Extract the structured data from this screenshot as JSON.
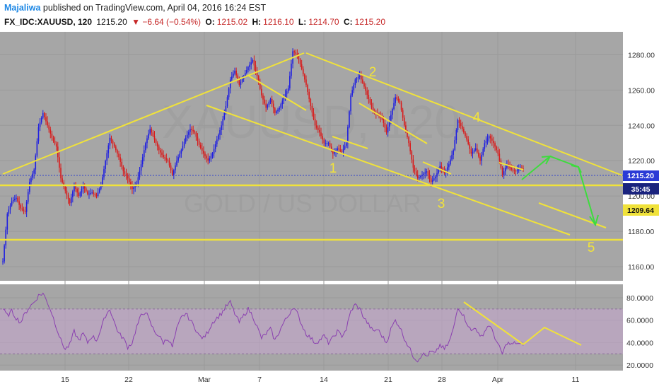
{
  "header": {
    "author": "Majaliwa",
    "published_text": "published on TradingView.com, April 04, 2016 16:24 EST",
    "symbol_interval": "FX_IDC:XAUUSD, 120",
    "price": "1215.20",
    "change": "▼ −6.64 (−0.54%)",
    "o_label": "O:",
    "o_value": "1215.02",
    "h_label": "H:",
    "h_value": "1216.10",
    "l_label": "L:",
    "l_value": "1214.70",
    "c_label": "C:",
    "c_value": "1215.20"
  },
  "watermark": {
    "main": "XAUUSD, 120",
    "sub": "GOLD / US DOLLAR"
  },
  "colors": {
    "panel_bg": "#a6a6a6",
    "up": "#1f1fe0",
    "down": "#d81b1b",
    "trend": "#f0e23a",
    "arrows": "#3ddc3d",
    "rsi_line": "#8a3fb0",
    "rsi_band": "#c6a6d0",
    "price_tag": "#2b3bd6",
    "navy_tag": "#1a237e"
  },
  "chart_data": {
    "type": "candlestick",
    "price_axis": {
      "ticks": [
        "1280.00",
        "1260.00",
        "1240.00",
        "1220.00",
        "1200.00",
        "1180.00",
        "1160.00"
      ],
      "range": [
        1152,
        1293
      ],
      "tags": {
        "last_price": "1215.20",
        "countdown": "35:45",
        "support": "1209.64"
      }
    },
    "rsi_axis": {
      "ticks": [
        "80.0000",
        "60.0000",
        "40.0000",
        "20.0000"
      ],
      "range": [
        15,
        92
      ],
      "band": [
        30,
        70
      ]
    },
    "x_labels": [
      "15",
      "22",
      "Mar",
      "7",
      "14",
      "21",
      "28",
      "Apr",
      "11"
    ],
    "wave_labels": [
      "1",
      "2",
      "3",
      "4",
      "5"
    ],
    "close_path": [
      [
        0,
        1163
      ],
      [
        3,
        1190
      ],
      [
        6,
        1197
      ],
      [
        9,
        1199
      ],
      [
        12,
        1193
      ],
      [
        15,
        1191
      ],
      [
        18,
        1208
      ],
      [
        21,
        1215
      ],
      [
        24,
        1239
      ],
      [
        27,
        1247
      ],
      [
        30,
        1240
      ],
      [
        33,
        1233
      ],
      [
        36,
        1228
      ],
      [
        39,
        1210
      ],
      [
        42,
        1203
      ],
      [
        45,
        1196
      ],
      [
        48,
        1206
      ],
      [
        51,
        1200
      ],
      [
        54,
        1206
      ],
      [
        57,
        1201
      ],
      [
        60,
        1202
      ],
      [
        63,
        1200
      ],
      [
        66,
        1206
      ],
      [
        69,
        1220
      ],
      [
        72,
        1233
      ],
      [
        75,
        1228
      ],
      [
        78,
        1222
      ],
      [
        81,
        1214
      ],
      [
        84,
        1210
      ],
      [
        87,
        1204
      ],
      [
        90,
        1207
      ],
      [
        93,
        1218
      ],
      [
        96,
        1230
      ],
      [
        99,
        1238
      ],
      [
        102,
        1232
      ],
      [
        105,
        1226
      ],
      [
        108,
        1222
      ],
      [
        111,
        1220
      ],
      [
        114,
        1212
      ],
      [
        117,
        1220
      ],
      [
        120,
        1226
      ],
      [
        123,
        1233
      ],
      [
        126,
        1238
      ],
      [
        129,
        1236
      ],
      [
        132,
        1229
      ],
      [
        135,
        1224
      ],
      [
        138,
        1220
      ],
      [
        141,
        1224
      ],
      [
        144,
        1232
      ],
      [
        147,
        1240
      ],
      [
        150,
        1251
      ],
      [
        153,
        1266
      ],
      [
        156,
        1271
      ],
      [
        159,
        1263
      ],
      [
        162,
        1268
      ],
      [
        165,
        1273
      ],
      [
        168,
        1277
      ],
      [
        171,
        1268
      ],
      [
        174,
        1257
      ],
      [
        177,
        1250
      ],
      [
        180,
        1255
      ],
      [
        183,
        1247
      ],
      [
        186,
        1250
      ],
      [
        189,
        1256
      ],
      [
        192,
        1261
      ],
      [
        195,
        1282
      ],
      [
        198,
        1280
      ],
      [
        201,
        1272
      ],
      [
        204,
        1263
      ],
      [
        207,
        1251
      ],
      [
        210,
        1240
      ],
      [
        213,
        1236
      ],
      [
        216,
        1230
      ],
      [
        219,
        1230
      ],
      [
        222,
        1224
      ],
      [
        225,
        1227
      ],
      [
        228,
        1225
      ],
      [
        231,
        1230
      ],
      [
        234,
        1257
      ],
      [
        237,
        1266
      ],
      [
        240,
        1268
      ],
      [
        243,
        1262
      ],
      [
        246,
        1255
      ],
      [
        249,
        1248
      ],
      [
        252,
        1246
      ],
      [
        255,
        1244
      ],
      [
        258,
        1236
      ],
      [
        261,
        1246
      ],
      [
        264,
        1256
      ],
      [
        267,
        1253
      ],
      [
        270,
        1240
      ],
      [
        273,
        1230
      ],
      [
        276,
        1216
      ],
      [
        279,
        1210
      ],
      [
        282,
        1212
      ],
      [
        285,
        1214
      ],
      [
        288,
        1208
      ],
      [
        291,
        1211
      ],
      [
        294,
        1217
      ],
      [
        297,
        1213
      ],
      [
        300,
        1218
      ],
      [
        303,
        1226
      ],
      [
        306,
        1243
      ],
      [
        309,
        1238
      ],
      [
        312,
        1232
      ],
      [
        315,
        1224
      ],
      [
        318,
        1227
      ],
      [
        321,
        1220
      ],
      [
        324,
        1230
      ],
      [
        327,
        1234
      ],
      [
        330,
        1230
      ],
      [
        333,
        1224
      ],
      [
        336,
        1212
      ],
      [
        339,
        1218
      ],
      [
        342,
        1215
      ],
      [
        345,
        1214
      ],
      [
        348,
        1216
      ],
      [
        350,
        1215.2
      ]
    ],
    "rsi_path": [
      [
        0,
        70
      ],
      [
        3,
        64
      ],
      [
        6,
        68
      ],
      [
        9,
        62
      ],
      [
        12,
        58
      ],
      [
        15,
        66
      ],
      [
        18,
        72
      ],
      [
        21,
        76
      ],
      [
        24,
        82
      ],
      [
        27,
        84
      ],
      [
        30,
        76
      ],
      [
        33,
        66
      ],
      [
        36,
        54
      ],
      [
        39,
        42
      ],
      [
        42,
        34
      ],
      [
        45,
        38
      ],
      [
        48,
        50
      ],
      [
        51,
        42
      ],
      [
        54,
        48
      ],
      [
        57,
        40
      ],
      [
        60,
        46
      ],
      [
        63,
        42
      ],
      [
        66,
        52
      ],
      [
        69,
        64
      ],
      [
        72,
        70
      ],
      [
        75,
        58
      ],
      [
        78,
        48
      ],
      [
        81,
        44
      ],
      [
        84,
        36
      ],
      [
        87,
        40
      ],
      [
        90,
        54
      ],
      [
        93,
        64
      ],
      [
        96,
        68
      ],
      [
        99,
        58
      ],
      [
        102,
        50
      ],
      [
        105,
        46
      ],
      [
        108,
        40
      ],
      [
        111,
        44
      ],
      [
        114,
        36
      ],
      [
        117,
        52
      ],
      [
        120,
        62
      ],
      [
        123,
        66
      ],
      [
        126,
        60
      ],
      [
        129,
        54
      ],
      [
        132,
        46
      ],
      [
        135,
        44
      ],
      [
        138,
        50
      ],
      [
        141,
        58
      ],
      [
        144,
        62
      ],
      [
        147,
        66
      ],
      [
        150,
        72
      ],
      [
        153,
        76
      ],
      [
        156,
        66
      ],
      [
        159,
        58
      ],
      [
        162,
        64
      ],
      [
        165,
        70
      ],
      [
        168,
        64
      ],
      [
        171,
        54
      ],
      [
        174,
        44
      ],
      [
        177,
        48
      ],
      [
        180,
        52
      ],
      [
        183,
        42
      ],
      [
        186,
        50
      ],
      [
        189,
        58
      ],
      [
        192,
        64
      ],
      [
        195,
        72
      ],
      [
        198,
        66
      ],
      [
        201,
        56
      ],
      [
        204,
        48
      ],
      [
        207,
        44
      ],
      [
        210,
        40
      ],
      [
        213,
        42
      ],
      [
        216,
        46
      ],
      [
        219,
        40
      ],
      [
        222,
        44
      ],
      [
        225,
        50
      ],
      [
        228,
        46
      ],
      [
        231,
        52
      ],
      [
        234,
        68
      ],
      [
        237,
        74
      ],
      [
        240,
        70
      ],
      [
        243,
        62
      ],
      [
        246,
        56
      ],
      [
        249,
        50
      ],
      [
        252,
        52
      ],
      [
        255,
        46
      ],
      [
        258,
        40
      ],
      [
        261,
        52
      ],
      [
        264,
        60
      ],
      [
        267,
        54
      ],
      [
        270,
        44
      ],
      [
        273,
        36
      ],
      [
        276,
        28
      ],
      [
        279,
        24
      ],
      [
        282,
        30
      ],
      [
        285,
        28
      ],
      [
        288,
        32
      ],
      [
        291,
        30
      ],
      [
        294,
        38
      ],
      [
        297,
        34
      ],
      [
        300,
        40
      ],
      [
        303,
        52
      ],
      [
        306,
        72
      ],
      [
        309,
        66
      ],
      [
        312,
        58
      ],
      [
        315,
        50
      ],
      [
        318,
        54
      ],
      [
        321,
        44
      ],
      [
        324,
        50
      ],
      [
        327,
        56
      ],
      [
        330,
        48
      ],
      [
        333,
        38
      ],
      [
        336,
        30
      ],
      [
        339,
        40
      ],
      [
        342,
        38
      ],
      [
        345,
        40
      ],
      [
        348,
        38
      ],
      [
        350,
        39
      ]
    ]
  }
}
